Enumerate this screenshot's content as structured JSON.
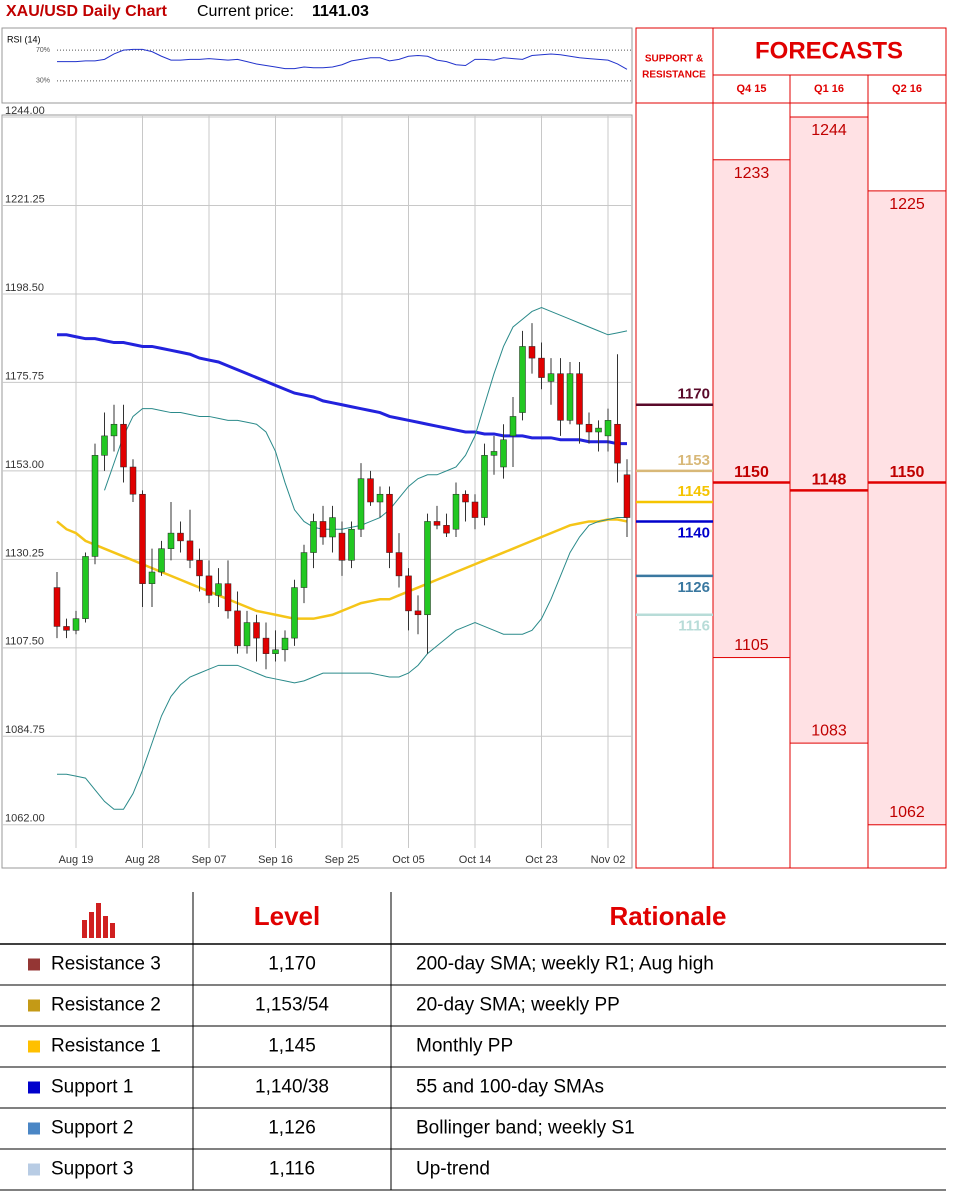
{
  "header": {
    "title": "XAU/USD Daily Chart",
    "price_label": "Current price:",
    "price": "1141.03"
  },
  "chart_data": {
    "type": "candlestick",
    "categories": [
      null,
      null,
      "Aug 19",
      null,
      null,
      null,
      null,
      null,
      null,
      "Aug 28",
      null,
      null,
      null,
      null,
      null,
      null,
      "Sep 07",
      null,
      null,
      null,
      null,
      null,
      null,
      "Sep 16",
      null,
      null,
      null,
      null,
      null,
      null,
      "Sep 25",
      null,
      null,
      null,
      null,
      null,
      null,
      "Oct 05",
      null,
      null,
      null,
      null,
      null,
      null,
      "Oct 14",
      null,
      null,
      null,
      null,
      null,
      null,
      "Oct 23",
      null,
      null,
      null,
      null,
      null,
      null,
      "Nov 02",
      null,
      null
    ],
    "open": [
      1123,
      1113,
      1112,
      1115,
      1131,
      1157,
      1162,
      1165,
      1154,
      1147,
      1124,
      1127,
      1133,
      1137,
      1135,
      1130,
      1126,
      1121,
      1124,
      1117,
      1108,
      1114,
      1110,
      1106,
      1107,
      1110,
      1123,
      1132,
      1140,
      1136,
      1137,
      1130,
      1138,
      1151,
      1145,
      1147,
      1132,
      1126,
      1117,
      1116,
      1140,
      1139,
      1138,
      1147,
      1145,
      1141,
      1157,
      1154,
      1162,
      1168,
      1185,
      1182,
      1176,
      1178,
      1166,
      1178,
      1165,
      1163,
      1162,
      1165,
      1152
    ],
    "high": [
      1127,
      1115,
      1117,
      1132,
      1160,
      1168,
      1170,
      1170,
      1156,
      1148,
      1133,
      1135,
      1145,
      1140,
      1143,
      1133,
      1130,
      1128,
      1130,
      1122,
      1117,
      1116,
      1114,
      1112,
      1112,
      1125,
      1134,
      1142,
      1144,
      1144,
      1140,
      1140,
      1155,
      1153,
      1149,
      1149,
      1137,
      1128,
      1121,
      1142,
      1144,
      1142,
      1150,
      1148,
      1147,
      1160,
      1162,
      1165,
      1172,
      1189,
      1191,
      1186,
      1182,
      1182,
      1181,
      1181,
      1168,
      1166,
      1169,
      1183,
      1156
    ],
    "low": [
      1110,
      1110,
      1111,
      1114,
      1129,
      1153,
      1158,
      1150,
      1145,
      1118,
      1118,
      1126,
      1130,
      1132,
      1128,
      1122,
      1119,
      1118,
      1115,
      1106,
      1106,
      1104,
      1102,
      1104,
      1104,
      1108,
      1119,
      1128,
      1134,
      1132,
      1126,
      1128,
      1136,
      1144,
      1141,
      1128,
      1123,
      1112,
      1111,
      1106,
      1138,
      1136,
      1136,
      1140,
      1138,
      1139,
      1152,
      1151,
      1154,
      1166,
      1178,
      1174,
      1170,
      1162,
      1165,
      1160,
      1160,
      1158,
      1158,
      1150,
      1136
    ],
    "close": [
      1113,
      1112,
      1115,
      1131,
      1157,
      1162,
      1165,
      1154,
      1147,
      1124,
      1127,
      1133,
      1137,
      1135,
      1130,
      1126,
      1121,
      1124,
      1117,
      1108,
      1114,
      1110,
      1106,
      1107,
      1110,
      1123,
      1132,
      1140,
      1136,
      1141,
      1130,
      1138,
      1151,
      1145,
      1147,
      1132,
      1126,
      1117,
      1116,
      1140,
      1139,
      1137,
      1147,
      1145,
      1141,
      1157,
      1158,
      1161,
      1167,
      1185,
      1182,
      1177,
      1178,
      1166,
      1178,
      1165,
      1163,
      1164,
      1166,
      1155,
      1141
    ],
    "up_color": "#22c822",
    "down_color": "#e00000",
    "series": [
      {
        "color": "#2222dd",
        "values": [
          1188,
          1188,
          1187.5,
          1187,
          1187,
          1186.5,
          1186,
          1186,
          1185.5,
          1185,
          1185,
          1184.5,
          1184,
          1183.5,
          1183,
          1182,
          1181.5,
          1181,
          1180,
          1179,
          1178,
          1177,
          1176,
          1175,
          1174,
          1173,
          1172.5,
          1172,
          1171,
          1170.5,
          1170,
          1169.5,
          1169,
          1168.5,
          1168,
          1167,
          1166.5,
          1166,
          1165.5,
          1165,
          1164.5,
          1164,
          1163.5,
          1163,
          1163,
          1162.5,
          1162.5,
          1162,
          1162,
          1162,
          1161.5,
          1161.5,
          1161.5,
          1161,
          1161,
          1161,
          1160.5,
          1160.5,
          1160.5,
          1160,
          1160
        ]
      },
      {
        "color": "#f5c518",
        "values": [
          1140,
          1138,
          1137,
          1135,
          1134,
          1133,
          1132,
          1131,
          1130,
          1129,
          1128,
          1127,
          1126,
          1125,
          1124,
          1123,
          1122,
          1121,
          1120,
          1119,
          1118,
          1117,
          1116.5,
          1116,
          1115.5,
          1115,
          1115,
          1115,
          1115.5,
          1116,
          1117,
          1118,
          1119,
          1119.5,
          1120,
          1120,
          1121,
          1122,
          1123,
          1124,
          1125,
          1126,
          1127,
          1128,
          1129,
          1130,
          1131,
          1132,
          1133,
          1134,
          1135,
          1136,
          1137,
          1138,
          1139,
          1139.5,
          1140,
          1140,
          1140.5,
          1140.5,
          1140
        ]
      },
      {
        "color": "#2a8a8a",
        "values": [
          null,
          null,
          null,
          null,
          null,
          1148,
          1155,
          1162,
          1167,
          1169,
          1169,
          1168.5,
          1168,
          1168,
          1167.5,
          1167,
          1167,
          1166.5,
          1166,
          1166,
          1165.5,
          1165,
          1163,
          1158,
          1150,
          1143,
          1140,
          1138.5,
          1138,
          1138,
          1138,
          1138.5,
          1139,
          1140,
          1141,
          1143,
          1146,
          1149,
          1151,
          1152,
          1152,
          1153,
          1154,
          1157,
          1162,
          1170,
          1178,
          1185,
          1190,
          1192,
          1194,
          1195,
          1194,
          1193,
          1192,
          1191,
          1190,
          1189,
          1188,
          1188.5,
          1189
        ]
      },
      {
        "color": "#2a8a8a",
        "values": [
          1075,
          1075,
          1074.5,
          1074,
          1071,
          1068,
          1066,
          1066,
          1070,
          1076,
          1083,
          1090,
          1095,
          1098,
          1100,
          1101,
          1102,
          1103,
          1103,
          1103,
          1102,
          1101,
          1100,
          1099.5,
          1099,
          1098.5,
          1099,
          1100,
          1101,
          1101,
          1101,
          1101,
          1101,
          1101,
          1100.5,
          1100,
          1100,
          1101,
          1103,
          1106,
          1108,
          1110,
          1112,
          1113,
          1114,
          1113,
          1112,
          1111,
          1111,
          1111,
          1112,
          1115,
          1120,
          1126,
          1132,
          1136,
          1139,
          1140,
          1140.5,
          1141,
          1141
        ]
      }
    ],
    "ylim": [
      1055,
      1244
    ],
    "yticks": [
      {
        "value": 1244,
        "label": "1244.00"
      },
      {
        "value": 1221.25,
        "label": "1221.25"
      },
      {
        "value": 1198.5,
        "label": "1198.50"
      },
      {
        "value": 1175.75,
        "label": "1175.75"
      },
      {
        "value": 1153,
        "label": "1153.00"
      },
      {
        "value": 1130.25,
        "label": "1130.25"
      },
      {
        "value": 1107.5,
        "label": "1107.50"
      },
      {
        "value": 1084.75,
        "label": "1084.75"
      },
      {
        "value": 1062,
        "label": "1062.00"
      }
    ],
    "grid": true,
    "rsi": {
      "label": "RSI (14)",
      "color": "#2233cc",
      "ylim": [
        0,
        100
      ],
      "yticks": [
        {
          "value": 70,
          "label": "70%"
        },
        {
          "value": 30,
          "label": "30%"
        }
      ],
      "values": [
        55,
        55,
        55,
        56,
        56,
        58,
        65,
        70,
        71,
        71,
        68,
        62,
        57,
        57,
        58,
        58,
        59,
        58,
        57,
        58,
        55,
        52,
        50,
        48,
        46,
        46,
        48,
        47,
        47,
        48,
        51,
        56,
        58,
        60,
        60,
        56,
        58,
        62,
        63,
        62,
        57,
        55,
        51,
        50,
        58,
        58,
        57,
        60,
        59,
        58,
        63,
        64,
        65,
        64,
        62,
        60,
        59,
        58,
        57,
        52,
        45
      ]
    },
    "levels": {
      "title_lines": [
        "SUPPORT &",
        "RESISTANCE"
      ],
      "values": [
        1170,
        1153,
        1145,
        1140,
        1126,
        1116
      ],
      "colors": [
        "#5a0a2a",
        "#d8b878",
        "#f5c400",
        "#0000cc",
        "#3a78a0",
        "#b8dcd8"
      ]
    },
    "forecasts": {
      "title": "FORECASTS",
      "quarters": [
        "Q4 15",
        "Q1 16",
        "Q2 16"
      ],
      "high": [
        1233,
        1244,
        1225
      ],
      "avg": [
        1150,
        1148,
        1150
      ],
      "low": [
        1105,
        1083,
        1062
      ]
    }
  },
  "table": {
    "header": {
      "level": "Level",
      "rationale": "Rationale"
    },
    "rows": [
      {
        "name": "Resistance 3",
        "level": "1,170",
        "rationale": "200-day SMA; weekly R1; Aug high",
        "color": "#943634"
      },
      {
        "name": "Resistance 2",
        "level": "1,153/54",
        "rationale": "20-day SMA; weekly PP",
        "color": "#c49a16"
      },
      {
        "name": "Resistance 1",
        "level": "1,145",
        "rationale": "Monthly PP",
        "color": "#ffc000"
      },
      {
        "name": "Support 1",
        "level": "1,140/38",
        "rationale": "55 and 100-day SMAs",
        "color": "#0000cc"
      },
      {
        "name": "Support 2",
        "level": "1,126",
        "rationale": "Bollinger band; weekly S1",
        "color": "#4a86c5"
      },
      {
        "name": "Support 3",
        "level": "1,116",
        "rationale": "Up-trend",
        "color": "#b8cce4"
      }
    ]
  }
}
